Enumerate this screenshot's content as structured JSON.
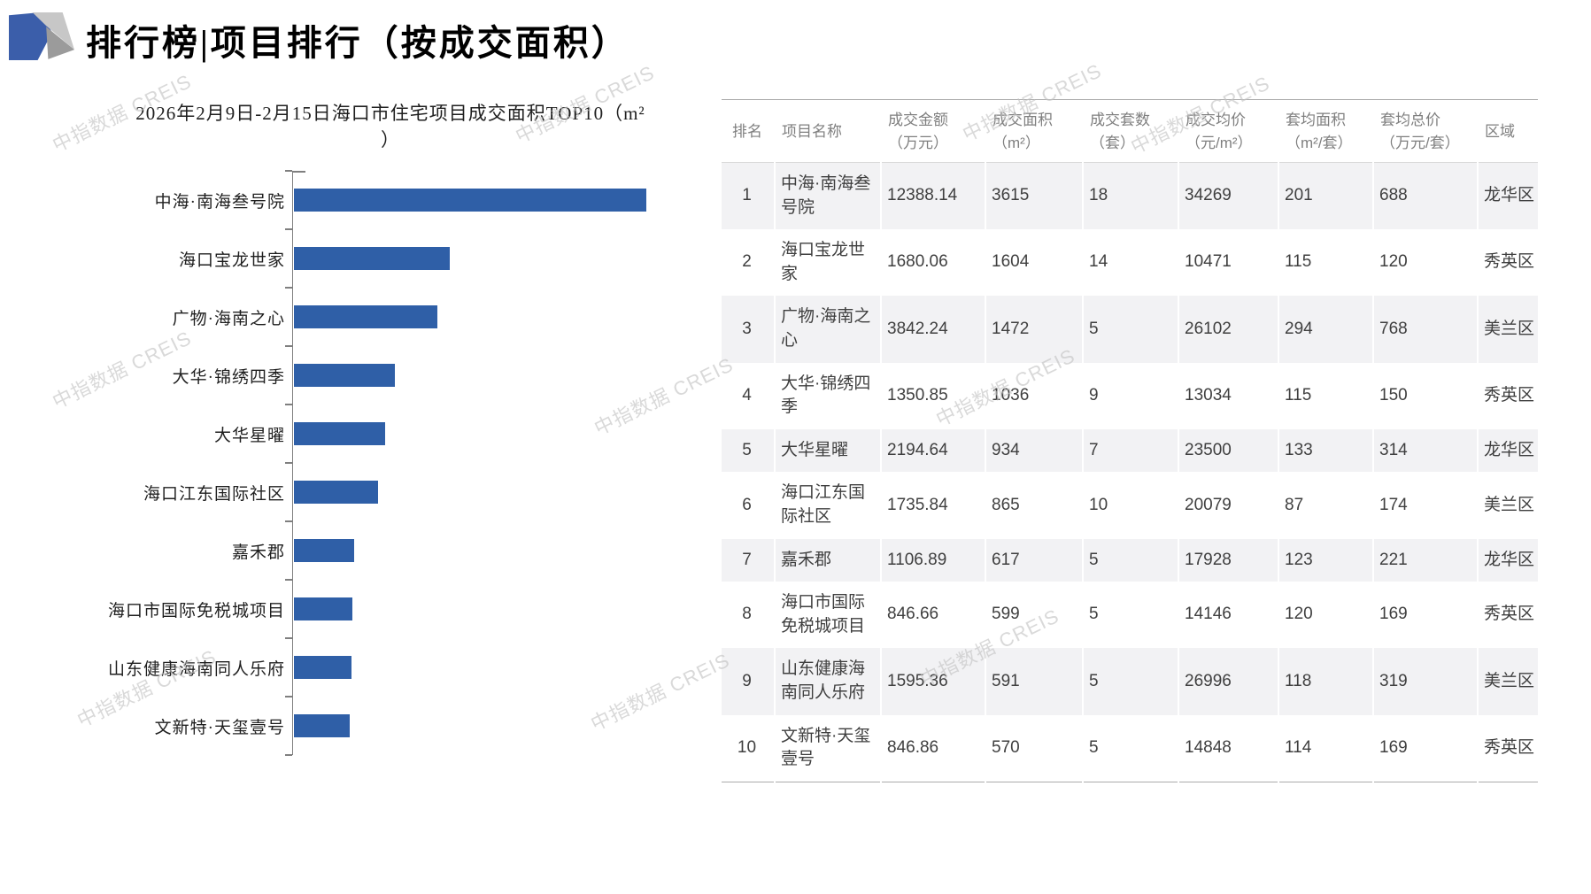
{
  "page": {
    "title": "排行榜|项目排行（按成交面积）",
    "watermark": "中指数据 CREIS"
  },
  "chart_data": {
    "type": "bar",
    "orientation": "horizontal",
    "title": "2026年2月9日-2月15日海口市住宅项目成交面积TOP10（m²）",
    "title_line1": "2026年2月9日-2月15日海口市住宅项目成交面积TOP10（m²",
    "title_line2": "）",
    "categories": [
      "中海·南海叁号院",
      "海口宝龙世家",
      "广物·海南之心",
      "大华·锦绣四季",
      "大华星曜",
      "海口江东国际社区",
      "嘉禾郡",
      "海口市国际免税城项目",
      "山东健康海南同人乐府",
      "文新特·天玺壹号"
    ],
    "values": [
      3615,
      1604,
      1472,
      1036,
      934,
      865,
      617,
      599,
      591,
      570
    ],
    "unit": "m²",
    "xlabel": "",
    "ylabel": "",
    "xlim": [
      0,
      4000
    ],
    "grid": false,
    "legend": false,
    "bar_color": "#2F5FA7"
  },
  "table": {
    "headers": [
      {
        "line1": "排名",
        "line2": ""
      },
      {
        "line1": "项目名称",
        "line2": ""
      },
      {
        "line1": "成交金额",
        "line2": "（万元）"
      },
      {
        "line1": "成交面积",
        "line2": "（m²）"
      },
      {
        "line1": "成交套数",
        "line2": "（套）"
      },
      {
        "line1": "成交均价",
        "line2": "（元/m²）"
      },
      {
        "line1": "套均面积",
        "line2": "（m²/套）"
      },
      {
        "line1": "套均总价",
        "line2": "（万元/套）"
      },
      {
        "line1": "区域",
        "line2": ""
      }
    ],
    "rows": [
      [
        "1",
        "中海·南海叁号院",
        "12388.14",
        "3615",
        "18",
        "34269",
        "201",
        "688",
        "龙华区"
      ],
      [
        "2",
        "海口宝龙世家",
        "1680.06",
        "1604",
        "14",
        "10471",
        "115",
        "120",
        "秀英区"
      ],
      [
        "3",
        "广物·海南之心",
        "3842.24",
        "1472",
        "5",
        "26102",
        "294",
        "768",
        "美兰区"
      ],
      [
        "4",
        "大华·锦绣四季",
        "1350.85",
        "1036",
        "9",
        "13034",
        "115",
        "150",
        "秀英区"
      ],
      [
        "5",
        "大华星曜",
        "2194.64",
        "934",
        "7",
        "23500",
        "133",
        "314",
        "龙华区"
      ],
      [
        "6",
        "海口江东国际社区",
        "1735.84",
        "865",
        "10",
        "20079",
        "87",
        "174",
        "美兰区"
      ],
      [
        "7",
        "嘉禾郡",
        "1106.89",
        "617",
        "5",
        "17928",
        "123",
        "221",
        "龙华区"
      ],
      [
        "8",
        "海口市国际免税城项目",
        "846.66",
        "599",
        "5",
        "14146",
        "120",
        "169",
        "秀英区"
      ],
      [
        "9",
        "山东健康海南同人乐府",
        "1595.36",
        "591",
        "5",
        "26996",
        "118",
        "319",
        "美兰区"
      ],
      [
        "10",
        "文新特·天玺壹号",
        "846.86",
        "570",
        "5",
        "14848",
        "114",
        "169",
        "秀英区"
      ]
    ]
  },
  "colors": {
    "bar": "#2F5FA7",
    "logo_blue": "#3B5EAA",
    "row_alt_bg": "#F2F2F4",
    "header_text": "#7F7F7F",
    "body_text": "#3F3F3F",
    "watermark": "#C3C3C3"
  }
}
